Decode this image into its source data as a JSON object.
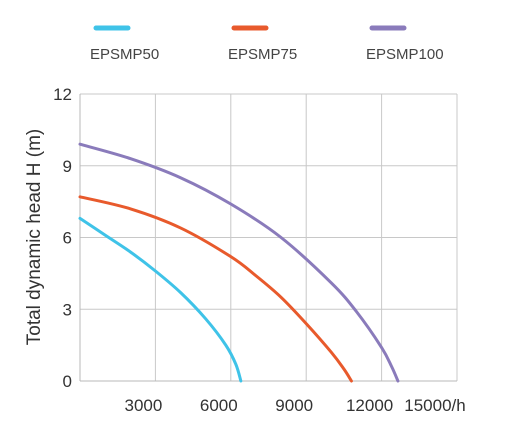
{
  "chart_data": {
    "type": "line",
    "title": "",
    "xlabel": "",
    "ylabel": "Total dynamic head H (m)",
    "x_unit": "/h",
    "xlim": [
      0,
      15000
    ],
    "ylim": [
      0,
      12
    ],
    "xticks": [
      3000,
      6000,
      9000,
      12000,
      15000
    ],
    "xtick_labels": [
      "3000",
      "6000",
      "9000",
      "12000",
      "15000/h"
    ],
    "yticks": [
      0,
      3,
      6,
      9,
      12
    ],
    "ytick_labels": [
      "0",
      "3",
      "6",
      "9",
      "12"
    ],
    "grid": true,
    "legend_position": "top",
    "series": [
      {
        "name": "EPSMP50",
        "color": "#3fc3e8",
        "x": [
          0,
          1000,
          2000,
          3000,
          4000,
          5000,
          5800,
          6200,
          6400
        ],
        "y": [
          6.8,
          6.1,
          5.4,
          4.6,
          3.7,
          2.6,
          1.5,
          0.7,
          0
        ]
      },
      {
        "name": "EPSMP75",
        "color": "#e85a2c",
        "x": [
          0,
          2000,
          4000,
          6000,
          7000,
          8000,
          9000,
          10000,
          10500,
          10800
        ],
        "y": [
          7.7,
          7.2,
          6.4,
          5.2,
          4.4,
          3.5,
          2.4,
          1.2,
          0.5,
          0
        ]
      },
      {
        "name": "EPSMP100",
        "color": "#8a7bbb",
        "x": [
          0,
          2000,
          4000,
          6000,
          8000,
          10000,
          11000,
          12000,
          12400,
          12650
        ],
        "y": [
          9.9,
          9.3,
          8.5,
          7.4,
          6.0,
          4.1,
          2.9,
          1.4,
          0.6,
          0
        ]
      }
    ]
  }
}
